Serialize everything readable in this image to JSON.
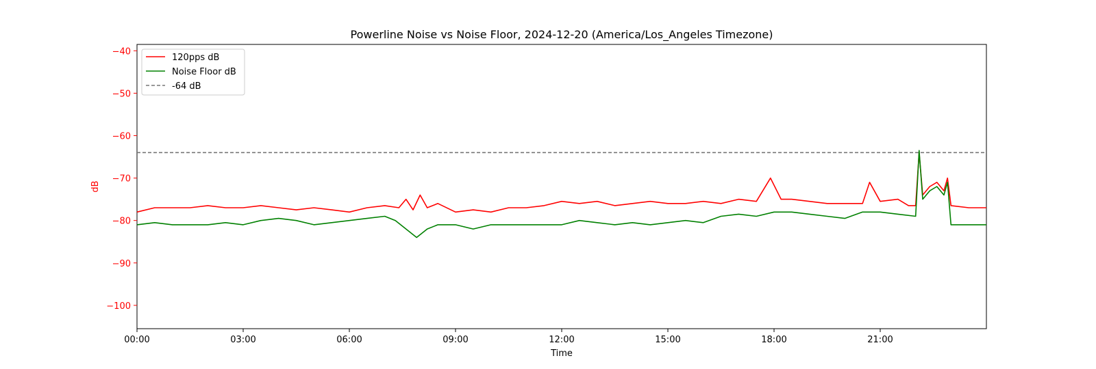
{
  "chart_data": {
    "type": "line",
    "title": "Powerline Noise vs Noise Floor, 2024-12-20 (America/Los_Angeles Timezone)",
    "xlabel": "Time",
    "ylabel": "dB",
    "x_ticks": [
      "00:00",
      "03:00",
      "06:00",
      "09:00",
      "12:00",
      "15:00",
      "18:00",
      "21:00"
    ],
    "y_ticks": [
      -40,
      -50,
      -60,
      -70,
      -80,
      -90,
      -100
    ],
    "xlim_hours": [
      0,
      24
    ],
    "ylim": [
      -105.5,
      -38.5
    ],
    "legend_position": "top-left",
    "grid": false,
    "series": [
      {
        "name": "120pps dB",
        "color": "#ff0000",
        "style": "solid",
        "x_hours": [
          0,
          0.5,
          1,
          1.5,
          2,
          2.5,
          3,
          3.5,
          4,
          4.5,
          5,
          5.5,
          6,
          6.5,
          7,
          7.4,
          7.6,
          7.8,
          8.0,
          8.2,
          8.5,
          9.0,
          9.5,
          10,
          10.5,
          11,
          11.5,
          12,
          12.5,
          13,
          13.5,
          14,
          14.5,
          15,
          15.5,
          16,
          16.5,
          17,
          17.5,
          17.9,
          18.2,
          18.5,
          19,
          19.5,
          20,
          20.5,
          20.7,
          21,
          21.5,
          21.8,
          22.0,
          22.1,
          22.2,
          22.4,
          22.6,
          22.8,
          22.9,
          23.0,
          23.5,
          24
        ],
        "values": [
          -78,
          -77,
          -77,
          -77,
          -76.5,
          -77,
          -77,
          -76.5,
          -77,
          -77.5,
          -77,
          -77.5,
          -78,
          -77,
          -76.5,
          -77,
          -75,
          -77.5,
          -74,
          -77,
          -76,
          -78,
          -77.5,
          -78,
          -77,
          -77,
          -76.5,
          -75.5,
          -76,
          -75.5,
          -76.5,
          -76,
          -75.5,
          -76,
          -76,
          -75.5,
          -76,
          -75,
          -75.5,
          -70,
          -75,
          -75,
          -75.5,
          -76,
          -76,
          -76,
          -71,
          -75.5,
          -75,
          -76.5,
          -76.5,
          -64,
          -74,
          -72,
          -71,
          -73,
          -70,
          -76.5,
          -77,
          -77
        ]
      },
      {
        "name": "Noise Floor dB",
        "color": "#008000",
        "style": "solid",
        "x_hours": [
          0,
          0.5,
          1,
          1.5,
          2,
          2.5,
          3,
          3.5,
          4,
          4.5,
          5,
          5.5,
          6,
          6.5,
          7,
          7.3,
          7.6,
          7.9,
          8.2,
          8.5,
          9.0,
          9.5,
          10,
          10.5,
          11,
          11.5,
          12,
          12.5,
          13,
          13.5,
          14,
          14.5,
          15,
          15.5,
          16,
          16.5,
          17,
          17.5,
          18,
          18.5,
          19,
          19.5,
          20,
          20.5,
          21,
          21.5,
          22.0,
          22.1,
          22.2,
          22.4,
          22.6,
          22.8,
          22.9,
          23.0,
          23.5,
          24
        ],
        "values": [
          -81,
          -80.5,
          -81,
          -81,
          -81,
          -80.5,
          -81,
          -80,
          -79.5,
          -80,
          -81,
          -80.5,
          -80,
          -79.5,
          -79,
          -80,
          -82,
          -84,
          -82,
          -81,
          -81,
          -82,
          -81,
          -81,
          -81,
          -81,
          -81,
          -80,
          -80.5,
          -81,
          -80.5,
          -81,
          -80.5,
          -80,
          -80.5,
          -79,
          -78.5,
          -79,
          -78,
          -78,
          -78.5,
          -79,
          -79.5,
          -78,
          -78,
          -78.5,
          -79,
          -63.5,
          -75,
          -73,
          -72,
          -74,
          -71,
          -81,
          -81,
          -81
        ]
      },
      {
        "name": "-64 dB",
        "color": "#777777",
        "style": "dashed",
        "x_hours": [
          0,
          24
        ],
        "values": [
          -64,
          -64
        ]
      }
    ]
  }
}
